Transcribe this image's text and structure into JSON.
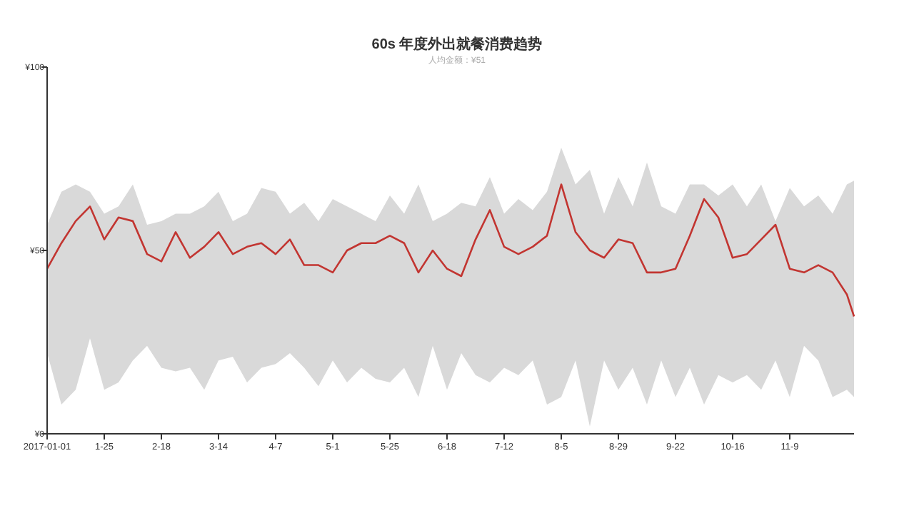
{
  "chart_data": {
    "type": "line",
    "title": "60s 年度外出就餐消费趋势",
    "subtitle": "人均金额：¥51",
    "x": [
      "2017-01-01",
      "2017-01-07",
      "2017-01-13",
      "2017-01-19",
      "2017-01-25",
      "2017-01-31",
      "2017-02-06",
      "2017-02-12",
      "2017-02-18",
      "2017-02-24",
      "2017-03-02",
      "2017-03-08",
      "2017-03-14",
      "2017-03-20",
      "2017-03-26",
      "2017-04-01",
      "2017-04-07",
      "2017-04-13",
      "2017-04-19",
      "2017-04-25",
      "2017-05-01",
      "2017-05-07",
      "2017-05-13",
      "2017-05-19",
      "2017-05-25",
      "2017-05-31",
      "2017-06-06",
      "2017-06-12",
      "2017-06-18",
      "2017-06-24",
      "2017-06-30",
      "2017-07-06",
      "2017-07-12",
      "2017-07-18",
      "2017-07-24",
      "2017-07-30",
      "2017-08-05",
      "2017-08-11",
      "2017-08-17",
      "2017-08-23",
      "2017-08-29",
      "2017-09-04",
      "2017-09-10",
      "2017-09-16",
      "2017-09-22",
      "2017-09-28",
      "2017-10-04",
      "2017-10-10",
      "2017-10-16",
      "2017-10-22",
      "2017-10-28",
      "2017-11-03",
      "2017-11-09",
      "2017-11-15",
      "2017-11-21",
      "2017-11-27",
      "2017-12-03",
      "2017-12-06"
    ],
    "series": [
      {
        "color": "#c23531",
        "line_style": "solid",
        "values": [
          45,
          52,
          58,
          62,
          53,
          59,
          58,
          49,
          47,
          55,
          48,
          51,
          55,
          49,
          51,
          52,
          49,
          53,
          46,
          46,
          44,
          50,
          52,
          52,
          54,
          52,
          44,
          50,
          45,
          43,
          53,
          61,
          51,
          49,
          51,
          54,
          68,
          55,
          50,
          48,
          53,
          52,
          44,
          44,
          45,
          54,
          64,
          59,
          48,
          49,
          53,
          57,
          45,
          44,
          46,
          44,
          38,
          32
        ],
        "upper": [
          57,
          66,
          68,
          66,
          60,
          62,
          68,
          57,
          58,
          60,
          60,
          62,
          66,
          58,
          60,
          67,
          66,
          60,
          63,
          58,
          64,
          62,
          60,
          58,
          65,
          60,
          68,
          58,
          60,
          63,
          62,
          70,
          60,
          64,
          61,
          66,
          78,
          68,
          72,
          60,
          70,
          62,
          74,
          62,
          60,
          68,
          68,
          65,
          68,
          62,
          68,
          58,
          67,
          62,
          65,
          60,
          68,
          69
        ],
        "lower": [
          22,
          8,
          12,
          26,
          12,
          14,
          20,
          24,
          18,
          17,
          18,
          12,
          20,
          21,
          14,
          18,
          19,
          22,
          18,
          13,
          20,
          14,
          18,
          15,
          14,
          18,
          10,
          24,
          12,
          22,
          16,
          14,
          18,
          16,
          20,
          8,
          10,
          20,
          2,
          20,
          12,
          18,
          8,
          20,
          10,
          18,
          8,
          16,
          14,
          16,
          12,
          20,
          10,
          24,
          20,
          10,
          12,
          10
        ]
      }
    ],
    "xlim": [
      "2017-01-01",
      "2017-12-06"
    ],
    "xticks": [
      {
        "value": "2017-01-01",
        "label": "2017-01-01"
      },
      {
        "value": "2017-01-25",
        "label": "1-25"
      },
      {
        "value": "2017-02-18",
        "label": "2-18"
      },
      {
        "value": "2017-03-14",
        "label": "3-14"
      },
      {
        "value": "2017-04-07",
        "label": "4-7"
      },
      {
        "value": "2017-05-01",
        "label": "5-1"
      },
      {
        "value": "2017-05-25",
        "label": "5-25"
      },
      {
        "value": "2017-06-18",
        "label": "6-18"
      },
      {
        "value": "2017-07-12",
        "label": "7-12"
      },
      {
        "value": "2017-08-05",
        "label": "8-5"
      },
      {
        "value": "2017-08-29",
        "label": "8-29"
      },
      {
        "value": "2017-09-22",
        "label": "9-22"
      },
      {
        "value": "2017-10-16",
        "label": "10-16"
      },
      {
        "value": "2017-11-09",
        "label": "11-9"
      }
    ],
    "ylim": [
      0,
      100
    ],
    "yticks": [
      {
        "value": 0,
        "label": "¥0"
      },
      {
        "value": 50,
        "label": "¥50"
      },
      {
        "value": 100,
        "label": "¥100"
      }
    ]
  }
}
